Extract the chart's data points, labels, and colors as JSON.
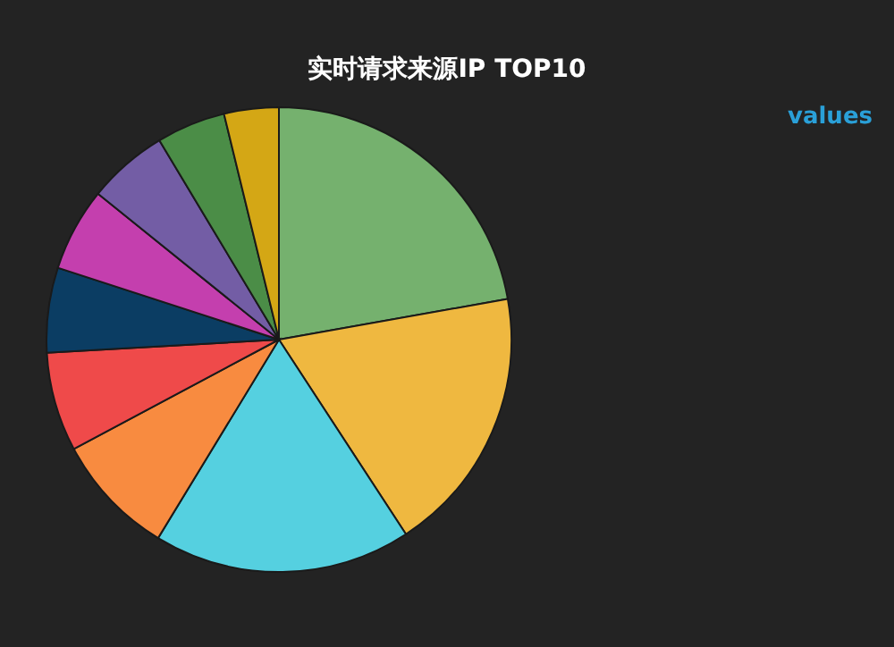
{
  "chart_data": {
    "type": "pie",
    "title": "实时请求来源IP TOP10",
    "annotations": [
      "values"
    ],
    "categories": [
      null,
      null,
      null,
      null,
      null,
      null,
      null,
      null,
      null,
      null
    ],
    "values": [
      22.2,
      18.6,
      17.9,
      8.5,
      6.9,
      5.9,
      5.8,
      5.6,
      4.8,
      3.8
    ],
    "colors": [
      "#75b16e",
      "#efb840",
      "#55d0e0",
      "#f88b40",
      "#ef4a4a",
      "#0b3d63",
      "#c43fae",
      "#735da5",
      "#4b8d47",
      "#d4a715"
    ]
  }
}
